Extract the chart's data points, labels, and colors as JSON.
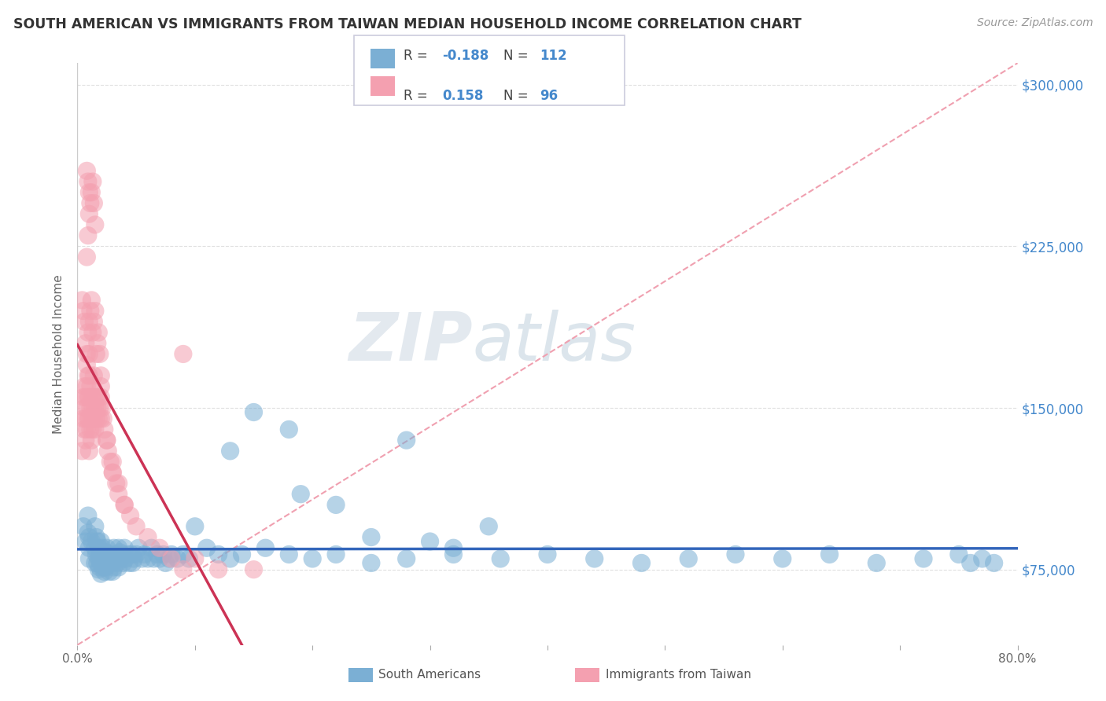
{
  "title": "SOUTH AMERICAN VS IMMIGRANTS FROM TAIWAN MEDIAN HOUSEHOLD INCOME CORRELATION CHART",
  "source": "Source: ZipAtlas.com",
  "ylabel": "Median Household Income",
  "xlim": [
    0.0,
    0.8
  ],
  "ylim": [
    40000,
    310000
  ],
  "yticks": [
    75000,
    150000,
    225000,
    300000
  ],
  "ytick_labels": [
    "$75,000",
    "$150,000",
    "$225,000",
    "$300,000"
  ],
  "xticks": [
    0.0,
    0.1,
    0.2,
    0.3,
    0.4,
    0.5,
    0.6,
    0.7,
    0.8
  ],
  "xtick_labels": [
    "0.0%",
    "",
    "",
    "",
    "",
    "",
    "",
    "",
    "80.0%"
  ],
  "legend_R_blue": "-0.188",
  "legend_N_blue": "112",
  "legend_R_pink": "0.158",
  "legend_N_pink": "96",
  "blue_color": "#7BAFD4",
  "pink_color": "#F4A0B0",
  "blue_line_color": "#3366BB",
  "pink_line_color": "#CC3355",
  "dashed_line_color": "#F0A0B0",
  "watermark_color": "#C8D8E8",
  "background_color": "#FFFFFF",
  "grid_color": "#E0E0E0",
  "title_color": "#333333",
  "axis_label_color": "#666666",
  "ytick_color": "#4488CC",
  "legend_text_color": "#4488CC",
  "blue_scatter_x": [
    0.005,
    0.007,
    0.009,
    0.009,
    0.01,
    0.01,
    0.01,
    0.012,
    0.015,
    0.015,
    0.015,
    0.016,
    0.016,
    0.017,
    0.017,
    0.018,
    0.018,
    0.018,
    0.019,
    0.019,
    0.02,
    0.02,
    0.02,
    0.02,
    0.021,
    0.022,
    0.022,
    0.023,
    0.023,
    0.024,
    0.024,
    0.025,
    0.025,
    0.026,
    0.027,
    0.027,
    0.028,
    0.029,
    0.03,
    0.03,
    0.031,
    0.031,
    0.032,
    0.033,
    0.034,
    0.035,
    0.035,
    0.036,
    0.037,
    0.038,
    0.039,
    0.04,
    0.041,
    0.043,
    0.044,
    0.046,
    0.047,
    0.048,
    0.05,
    0.052,
    0.055,
    0.057,
    0.06,
    0.063,
    0.065,
    0.068,
    0.07,
    0.073,
    0.075,
    0.078,
    0.08,
    0.085,
    0.09,
    0.095,
    0.1,
    0.11,
    0.12,
    0.13,
    0.14,
    0.16,
    0.18,
    0.2,
    0.22,
    0.25,
    0.28,
    0.32,
    0.36,
    0.4,
    0.44,
    0.48,
    0.52,
    0.56,
    0.6,
    0.64,
    0.68,
    0.72,
    0.75,
    0.76,
    0.77,
    0.78,
    0.18,
    0.28,
    0.35,
    0.15,
    0.13,
    0.22,
    0.19,
    0.25,
    0.3,
    0.32
  ],
  "blue_scatter_y": [
    95000,
    88000,
    100000,
    92000,
    90000,
    85000,
    80000,
    88000,
    95000,
    85000,
    78000,
    90000,
    82000,
    88000,
    78000,
    85000,
    80000,
    75000,
    82000,
    76000,
    88000,
    83000,
    78000,
    73000,
    85000,
    82000,
    76000,
    80000,
    74000,
    83000,
    76000,
    85000,
    78000,
    82000,
    80000,
    74000,
    82000,
    78000,
    80000,
    74000,
    85000,
    76000,
    80000,
    82000,
    78000,
    85000,
    76000,
    83000,
    80000,
    82000,
    78000,
    85000,
    80000,
    82000,
    78000,
    82000,
    78000,
    80000,
    82000,
    85000,
    80000,
    82000,
    80000,
    85000,
    80000,
    82000,
    80000,
    82000,
    78000,
    80000,
    82000,
    80000,
    82000,
    80000,
    95000,
    85000,
    82000,
    80000,
    82000,
    85000,
    82000,
    80000,
    82000,
    78000,
    80000,
    82000,
    80000,
    82000,
    80000,
    78000,
    80000,
    82000,
    80000,
    82000,
    78000,
    80000,
    82000,
    78000,
    80000,
    78000,
    140000,
    135000,
    95000,
    148000,
    130000,
    105000,
    110000,
    90000,
    88000,
    85000
  ],
  "pink_scatter_x": [
    0.004,
    0.005,
    0.005,
    0.006,
    0.006,
    0.006,
    0.007,
    0.007,
    0.007,
    0.008,
    0.008,
    0.008,
    0.008,
    0.009,
    0.009,
    0.009,
    0.01,
    0.01,
    0.01,
    0.01,
    0.01,
    0.011,
    0.011,
    0.011,
    0.012,
    0.012,
    0.012,
    0.013,
    0.013,
    0.014,
    0.014,
    0.014,
    0.015,
    0.015,
    0.016,
    0.016,
    0.017,
    0.018,
    0.018,
    0.019,
    0.02,
    0.02,
    0.021,
    0.022,
    0.023,
    0.025,
    0.026,
    0.028,
    0.03,
    0.033,
    0.035,
    0.04,
    0.045,
    0.05,
    0.06,
    0.07,
    0.08,
    0.09,
    0.1,
    0.12,
    0.15,
    0.09,
    0.03,
    0.008,
    0.007,
    0.006,
    0.005,
    0.004,
    0.009,
    0.01,
    0.011,
    0.012,
    0.013,
    0.014,
    0.015,
    0.016,
    0.017,
    0.018,
    0.019,
    0.02,
    0.008,
    0.009,
    0.01,
    0.011,
    0.012,
    0.013,
    0.014,
    0.015,
    0.02,
    0.025,
    0.03,
    0.035,
    0.04,
    0.008,
    0.009,
    0.01
  ],
  "pink_scatter_y": [
    130000,
    145000,
    155000,
    140000,
    150000,
    160000,
    135000,
    145000,
    155000,
    140000,
    150000,
    160000,
    170000,
    145000,
    155000,
    165000,
    130000,
    145000,
    155000,
    165000,
    175000,
    140000,
    150000,
    160000,
    135000,
    145000,
    155000,
    140000,
    150000,
    145000,
    155000,
    165000,
    140000,
    150000,
    145000,
    155000,
    150000,
    145000,
    155000,
    150000,
    145000,
    155000,
    150000,
    145000,
    140000,
    135000,
    130000,
    125000,
    120000,
    115000,
    110000,
    105000,
    100000,
    95000,
    90000,
    85000,
    80000,
    75000,
    80000,
    75000,
    75000,
    175000,
    120000,
    175000,
    180000,
    190000,
    195000,
    200000,
    185000,
    190000,
    195000,
    200000,
    185000,
    190000,
    195000,
    175000,
    180000,
    185000,
    175000,
    165000,
    220000,
    230000,
    240000,
    245000,
    250000,
    255000,
    245000,
    235000,
    160000,
    135000,
    125000,
    115000,
    105000,
    260000,
    255000,
    250000
  ]
}
